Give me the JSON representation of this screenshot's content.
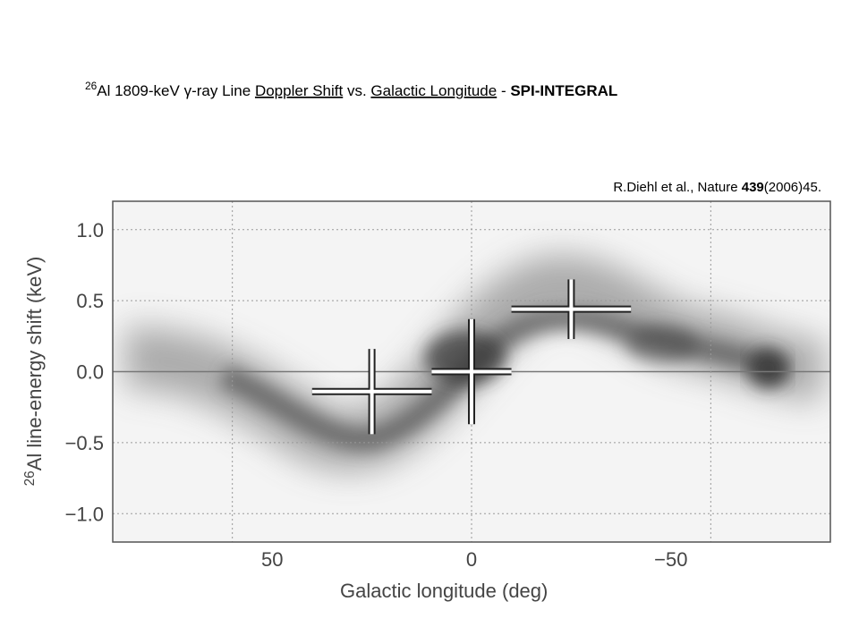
{
  "chart_data": {
    "type": "errorbar",
    "title": [
      {
        "text": "26",
        "style": "sup"
      },
      {
        "text": "Al 1809-keV ",
        "style": "plain"
      },
      {
        "text": "γ",
        "style": "plain"
      },
      {
        "text": "-ray Line ",
        "style": "plain"
      },
      {
        "text": "Doppler Shift",
        "style": "underline"
      },
      {
        "text": " vs. ",
        "style": "plain"
      },
      {
        "text": "Galactic Longitude",
        "style": "underline"
      },
      {
        "text": " -  ",
        "style": "plain"
      },
      {
        "text": "SPI-INTEGRAL",
        "style": "bold"
      }
    ],
    "citation": [
      {
        "text": "R.Diehl et al., Nature ",
        "style": "plain"
      },
      {
        "text": "439",
        "style": "bold"
      },
      {
        "text": "(2006)45.",
        "style": "plain"
      }
    ],
    "xlabel": "Galactic longitude (deg)",
    "ylabel": [
      {
        "text": "26",
        "style": "sup"
      },
      {
        "text": "Al line-energy shift (keV)",
        "style": "plain"
      }
    ],
    "x": [
      25,
      0,
      -25
    ],
    "xerr": [
      15,
      10,
      15
    ],
    "values": [
      -0.14,
      0.0,
      0.44
    ],
    "yerr": [
      0.3,
      0.37,
      0.21
    ],
    "xlim": [
      90,
      -90
    ],
    "ylim": [
      -1.2,
      1.2
    ],
    "xticks": [
      50,
      0,
      {
        "value": -50,
        "label": "−50"
      }
    ],
    "xgrid": [
      60,
      0,
      -60
    ],
    "yticks": [
      {
        "value": 1,
        "label": "1.0"
      },
      0.5,
      {
        "value": 0,
        "label": "0.0"
      },
      {
        "value": -0.5,
        "label": "−0.5"
      },
      {
        "value": -1,
        "label": "−1.0"
      }
    ],
    "grid": true,
    "zero_line": true,
    "color": "#222222"
  }
}
